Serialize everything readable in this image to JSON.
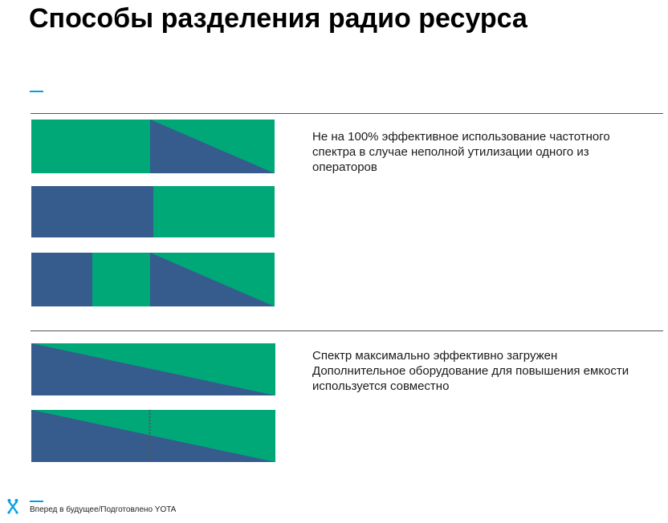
{
  "title": "Способы разделения радио ресурса",
  "colors": {
    "green": "#00a878",
    "blue": "#355c8c",
    "accent": "#00a0e3",
    "divider": "#555555"
  },
  "sections": [
    {
      "description": [
        "Не на 100% эффективное использование частотного спектра в случае неполной утилизации одного из операторов"
      ]
    },
    {
      "description": [
        "Спектр максимально эффективно загружен",
        "Дополнительное оборудование для повышения емкости используется совместно"
      ]
    }
  ],
  "footer": {
    "logo_icon": "yota-logo-icon",
    "text": "Вперед в будущее/Подготовлено YOTA"
  }
}
